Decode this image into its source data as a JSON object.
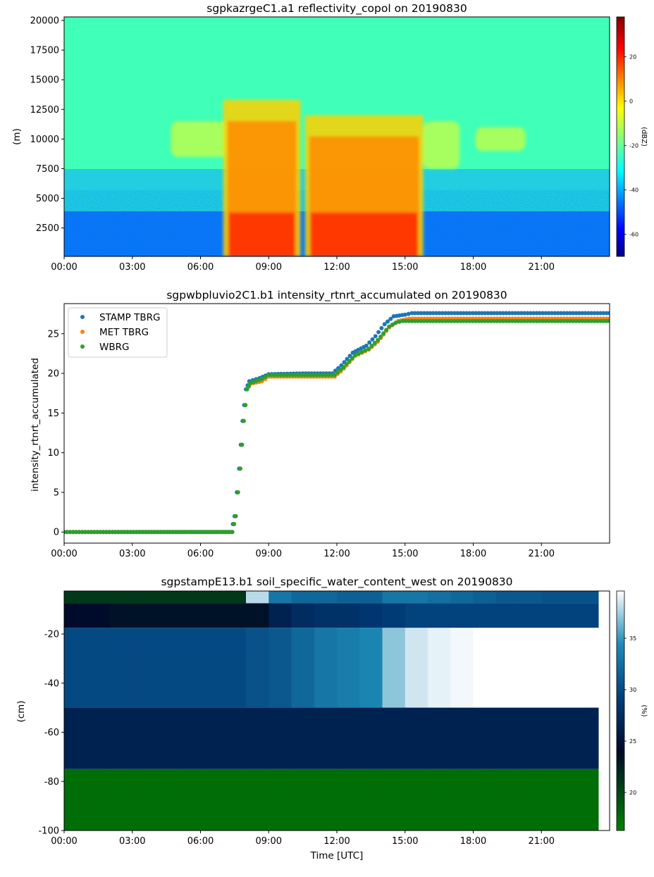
{
  "chart_data": [
    {
      "type": "heatmap",
      "title": "sgpkazrgeC1.a1 reflectivity_copol on 20190830",
      "ylabel": "(m)",
      "xlabel": "",
      "x_ticks": [
        "00:00",
        "03:00",
        "06:00",
        "09:00",
        "12:00",
        "15:00",
        "18:00",
        "21:00"
      ],
      "y_ticks": [
        2500,
        5000,
        7500,
        10000,
        12500,
        15000,
        17500,
        20000
      ],
      "xlim_hours": [
        0,
        24
      ],
      "ylim": [
        100,
        20300
      ],
      "colorbar": {
        "label": "(dBZ)",
        "ticks": [
          20,
          0,
          -20,
          -40,
          -60
        ],
        "range": [
          -70,
          38
        ],
        "colormap": "jet"
      },
      "features": [
        {
          "name": "cloud",
          "t_start": 4.7,
          "t_end": 7.2,
          "z_bottom": 8500,
          "z_top": 11500
        },
        {
          "name": "rain",
          "t_start": 7.0,
          "t_end": 10.4,
          "z_bottom": 100,
          "z_top": 13300
        },
        {
          "name": "rain",
          "t_start": 10.6,
          "t_end": 15.8,
          "z_bottom": 100,
          "z_top": 12000
        },
        {
          "name": "anvil",
          "t_start": 15.8,
          "t_end": 17.4,
          "z_bottom": 7500,
          "z_top": 11500
        },
        {
          "name": "cloud",
          "t_start": 18.1,
          "t_end": 20.3,
          "z_bottom": 9000,
          "z_top": 11000
        }
      ]
    },
    {
      "type": "scatter",
      "title": "sgpwbpluvio2C1.b1 intensity_rtnrt_accumulated on 20190830",
      "ylabel": "intensity_rtnrt_accumulated",
      "xlabel": "",
      "x_ticks": [
        "00:00",
        "03:00",
        "06:00",
        "09:00",
        "12:00",
        "15:00",
        "18:00",
        "21:00"
      ],
      "y_ticks": [
        0,
        5,
        10,
        15,
        20,
        25
      ],
      "xlim_hours": [
        0,
        24
      ],
      "ylim": [
        -1.4,
        28.8
      ],
      "legend_position": "upper-left",
      "series": [
        {
          "name": "STAMP TBRG",
          "color": "#1f77b4",
          "points": [
            [
              0,
              0
            ],
            [
              7.35,
              0
            ],
            [
              7.5,
              2
            ],
            [
              7.7,
              8
            ],
            [
              7.85,
              14
            ],
            [
              8.0,
              18
            ],
            [
              8.15,
              19
            ],
            [
              8.6,
              19.4
            ],
            [
              9.0,
              19.9
            ],
            [
              10.5,
              20.0
            ],
            [
              11.8,
              20.0
            ],
            [
              12.2,
              21.0
            ],
            [
              12.7,
              22.6
            ],
            [
              13.3,
              23.5
            ],
            [
              13.7,
              24.7
            ],
            [
              14.1,
              26.2
            ],
            [
              14.5,
              27.2
            ],
            [
              15.0,
              27.4
            ],
            [
              15.3,
              27.6
            ],
            [
              24,
              27.6
            ]
          ]
        },
        {
          "name": "MET TBRG",
          "color": "#ff7f0e",
          "points": [
            [
              0,
              0
            ],
            [
              7.4,
              0
            ],
            [
              7.55,
              2
            ],
            [
              7.75,
              8
            ],
            [
              7.9,
              14
            ],
            [
              8.05,
              18
            ],
            [
              8.2,
              18.7
            ],
            [
              8.7,
              19.0
            ],
            [
              9.0,
              19.6
            ],
            [
              11.9,
              19.6
            ],
            [
              12.3,
              20.6
            ],
            [
              12.8,
              22.2
            ],
            [
              13.4,
              23.0
            ],
            [
              13.8,
              24.0
            ],
            [
              14.3,
              25.8
            ],
            [
              14.7,
              26.6
            ],
            [
              15.2,
              26.9
            ],
            [
              24,
              26.9
            ]
          ]
        },
        {
          "name": "WBRG",
          "color": "#2ca02c",
          "points": [
            [
              0,
              0
            ],
            [
              7.4,
              0
            ],
            [
              7.55,
              2
            ],
            [
              7.75,
              8
            ],
            [
              7.9,
              14
            ],
            [
              8.05,
              18
            ],
            [
              8.2,
              18.8
            ],
            [
              8.7,
              19.3
            ],
            [
              9.0,
              19.8
            ],
            [
              11.9,
              19.8
            ],
            [
              12.3,
              20.8
            ],
            [
              12.8,
              22.3
            ],
            [
              13.4,
              23.1
            ],
            [
              13.8,
              24.2
            ],
            [
              14.3,
              25.9
            ],
            [
              14.6,
              26.4
            ],
            [
              14.9,
              26.6
            ],
            [
              24,
              26.6
            ]
          ]
        }
      ]
    },
    {
      "type": "heatmap",
      "title": "sgpstampE13.b1 soil_specific_water_content_west on 20190830",
      "ylabel": "(cm)",
      "xlabel": "Time [UTC]",
      "x_ticks": [
        "00:00",
        "03:00",
        "06:00",
        "09:00",
        "12:00",
        "15:00",
        "18:00",
        "21:00"
      ],
      "y_ticks": [
        -20,
        -40,
        -60,
        -80,
        -100
      ],
      "xlim_hours": [
        0,
        24
      ],
      "ylim": [
        -100,
        -2.5
      ],
      "colorbar": {
        "label": "(%)",
        "ticks": [
          35,
          30,
          25,
          20
        ],
        "range": [
          16.3,
          39.6
        ],
        "colormap": "ocean"
      },
      "layers": [
        {
          "top": -2.5,
          "bottom": -7.5,
          "values_by_hour": [
            21.0,
            21.0,
            21.0,
            21.0,
            21.0,
            21.0,
            21.0,
            21.0,
            38.0,
            33.0,
            32.0,
            32.0,
            31.5,
            31.5,
            33.0,
            33.0,
            32.5,
            32.0,
            31.5,
            31.0,
            31.0,
            30.5,
            30.5,
            30.5
          ]
        },
        {
          "top": -7.5,
          "bottom": -17.5,
          "values_by_hour": [
            24.0,
            24.0,
            23.5,
            23.5,
            23.5,
            23.5,
            23.5,
            23.5,
            23.5,
            26.5,
            27.5,
            28.0,
            28.0,
            28.5,
            29.0,
            29.5,
            29.5,
            29.5,
            29.5,
            29.5,
            29.5,
            29.5,
            29.5,
            29.5
          ]
        },
        {
          "top": -17.5,
          "bottom": -50,
          "values_by_hour": [
            30.0,
            30.0,
            30.0,
            30.0,
            30.0,
            30.0,
            30.0,
            30.0,
            30.5,
            31.0,
            32.0,
            33.0,
            33.5,
            34.0,
            37.0,
            38.5,
            39.0,
            39.3,
            39.6,
            39.6,
            39.6,
            39.6,
            39.6,
            39.6
          ]
        },
        {
          "top": -50,
          "bottom": -75,
          "values_by_hour": [
            26.5,
            26.5,
            26.5,
            26.5,
            26.5,
            26.5,
            26.5,
            26.5,
            26.5,
            26.5,
            26.5,
            26.5,
            26.5,
            26.5,
            26.5,
            26.5,
            26.5,
            26.5,
            26.5,
            26.5,
            26.5,
            26.5,
            26.5,
            26.5
          ]
        },
        {
          "top": -75,
          "bottom": -100,
          "values_by_hour": [
            17.5,
            17.5,
            17.5,
            17.5,
            17.5,
            17.5,
            17.5,
            17.5,
            17.5,
            17.5,
            17.5,
            17.5,
            17.5,
            17.5,
            17.5,
            17.5,
            17.5,
            17.5,
            17.5,
            17.5,
            17.5,
            17.5,
            17.5,
            17.5
          ]
        }
      ]
    }
  ]
}
